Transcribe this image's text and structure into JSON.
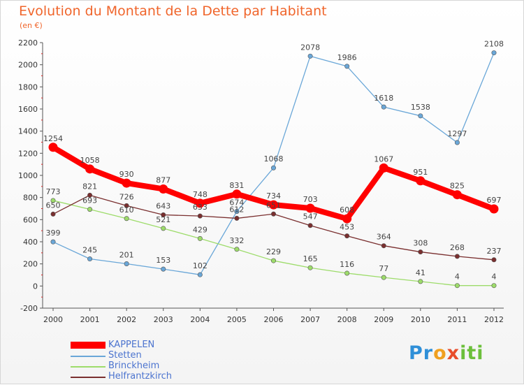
{
  "header": {
    "title": "Evolution du Montant de la Dette par Habitant",
    "subtitle": "(en €)"
  },
  "chart_data": {
    "type": "line",
    "title": "Evolution du Montant de la Dette par Habitant",
    "subtitle": "(en €)",
    "xlabel": "",
    "ylabel": "",
    "x": [
      "2000",
      "2001",
      "2002",
      "2003",
      "2004",
      "2005",
      "2006",
      "2007",
      "2008",
      "2009",
      "2010",
      "2011",
      "2012"
    ],
    "ylim": [
      -200,
      2200
    ],
    "yticks": [
      -200,
      0,
      200,
      400,
      600,
      800,
      1000,
      1200,
      1400,
      1600,
      1800,
      2000,
      2200
    ],
    "grid": false,
    "legend_position": "bottom-left",
    "series": [
      {
        "name": "KAPPELEN",
        "color": "#ff0000",
        "values": [
          1254,
          1058,
          930,
          877,
          748,
          831,
          734,
          703,
          608,
          1067,
          951,
          825,
          697
        ]
      },
      {
        "name": "Stetten",
        "color": "#6aa7d8",
        "values": [
          399,
          245,
          201,
          153,
          102,
          674,
          1068,
          2078,
          1986,
          1618,
          1538,
          1297,
          2108
        ]
      },
      {
        "name": "Brinckheim",
        "color": "#9ddc6a",
        "values": [
          773,
          693,
          610,
          521,
          429,
          332,
          229,
          165,
          116,
          77,
          41,
          4,
          4
        ]
      },
      {
        "name": "Helfrantzkirch",
        "color": "#7a2f2f",
        "values": [
          650,
          821,
          726,
          643,
          633,
          612,
          651,
          547,
          453,
          364,
          308,
          268,
          237
        ]
      }
    ]
  },
  "logo": {
    "part1": "Pr",
    "part2": "o",
    "part3": "x",
    "part4": "iti"
  }
}
